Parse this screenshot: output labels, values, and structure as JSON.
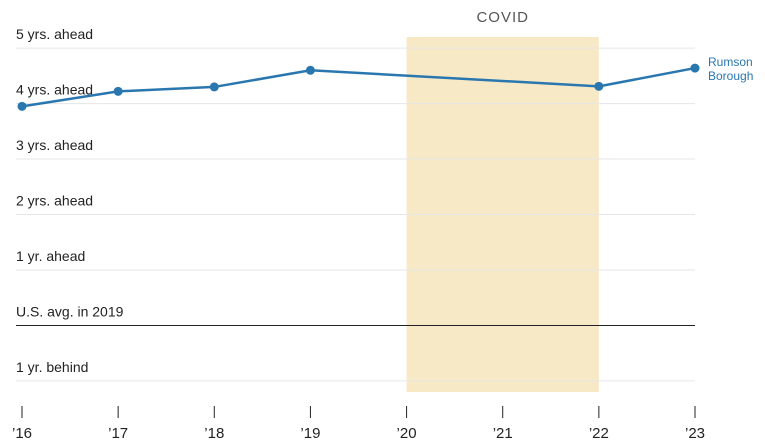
{
  "chart_data": {
    "type": "line",
    "x": [
      2016,
      2017,
      2018,
      2019,
      2022,
      2023
    ],
    "series": [
      {
        "name": "Rumson Borough",
        "color": "#2a77b0",
        "values": [
          3.95,
          4.22,
          4.3,
          4.6,
          4.31,
          4.64
        ]
      }
    ],
    "xlim": [
      2016,
      2023
    ],
    "xticks": [
      {
        "value": 2016,
        "label": "’16"
      },
      {
        "value": 2017,
        "label": "’17"
      },
      {
        "value": 2018,
        "label": "’18"
      },
      {
        "value": 2019,
        "label": "’19"
      },
      {
        "value": 2020,
        "label": "’20"
      },
      {
        "value": 2021,
        "label": "’21"
      },
      {
        "value": 2022,
        "label": "’22"
      },
      {
        "value": 2023,
        "label": "’23"
      }
    ],
    "ylim": [
      -1.2,
      5.2
    ],
    "yticks": [
      {
        "value": 5,
        "label": "5 yrs. ahead"
      },
      {
        "value": 4,
        "label": "4 yrs. ahead"
      },
      {
        "value": 3,
        "label": "3 yrs. ahead"
      },
      {
        "value": 2,
        "label": "2 yrs. ahead"
      },
      {
        "value": 1,
        "label": "1 yr. ahead"
      },
      {
        "value": 0,
        "label": "U.S. avg. in 2019"
      },
      {
        "value": -1,
        "label": "1 yr. behind"
      }
    ],
    "grid": true,
    "shaded_region": {
      "label": "COVID",
      "x": [
        2020,
        2022
      ],
      "color": "#f8e9c6"
    }
  }
}
